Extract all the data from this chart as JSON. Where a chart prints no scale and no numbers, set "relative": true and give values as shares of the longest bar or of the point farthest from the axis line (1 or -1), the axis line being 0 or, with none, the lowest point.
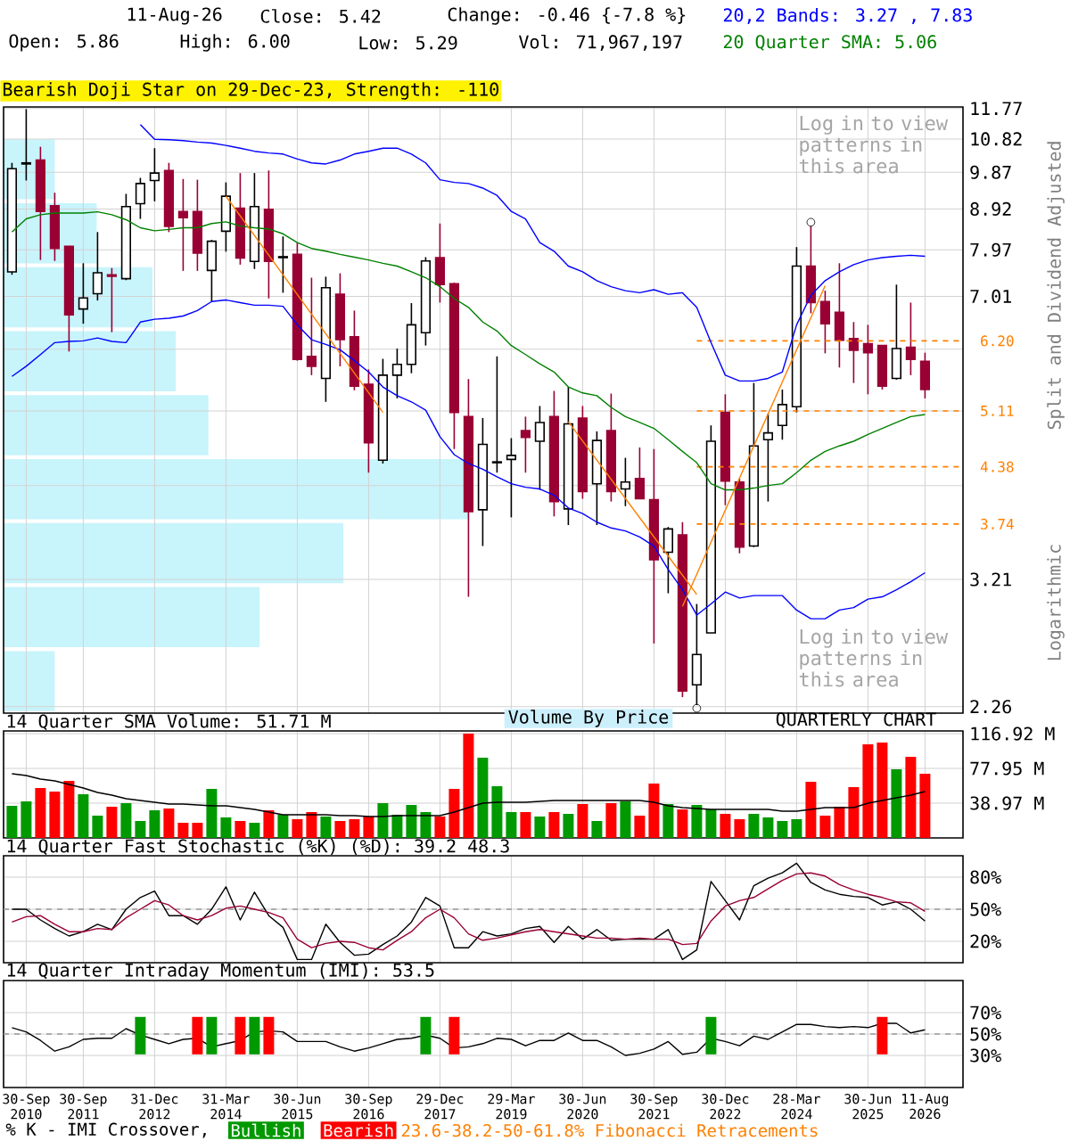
{
  "chart_data": [
    {
      "type": "candlestick",
      "log": true,
      "grid": true,
      "tick_labels": "y",
      "categories": [
        null,
        null,
        null,
        null,
        null,
        null,
        null,
        null,
        null,
        null,
        null,
        null,
        null,
        null,
        null,
        null,
        null,
        null,
        null,
        null,
        null,
        null,
        null,
        null,
        null,
        null,
        null,
        null,
        null,
        null,
        null,
        null,
        null,
        null,
        null,
        null,
        null,
        null,
        null,
        null,
        null,
        null,
        null,
        null,
        null,
        null,
        null,
        null,
        null,
        null,
        null,
        null,
        null,
        null,
        null,
        null,
        null,
        null,
        null,
        null,
        null,
        null,
        null,
        null,
        null
      ],
      "ohlc": [
        [
          7.5,
          10.13,
          7.44,
          9.97
        ],
        [
          10.1,
          11.75,
          9.65,
          10.13
        ],
        [
          10.21,
          10.59,
          7.75,
          8.86
        ],
        [
          9.0,
          9.33,
          7.73,
          8.0
        ],
        [
          8.05,
          8.05,
          6.02,
          6.66
        ],
        [
          6.77,
          7.68,
          6.5,
          6.98
        ],
        [
          7.06,
          8.37,
          6.93,
          7.48
        ],
        [
          7.44,
          7.58,
          6.35,
          7.41
        ],
        [
          7.36,
          9.3,
          7.33,
          8.98
        ],
        [
          9.05,
          9.72,
          8.68,
          9.57
        ],
        [
          9.65,
          10.55,
          9.11,
          9.85
        ],
        [
          9.92,
          10.13,
          8.37,
          8.5
        ],
        [
          8.86,
          9.69,
          7.52,
          8.71
        ],
        [
          8.86,
          9.67,
          7.52,
          7.9
        ],
        [
          7.53,
          8.19,
          6.91,
          8.16
        ],
        [
          8.39,
          9.6,
          7.93,
          9.24
        ],
        [
          8.94,
          9.85,
          7.65,
          7.79
        ],
        [
          7.72,
          9.85,
          7.56,
          8.98
        ],
        [
          8.91,
          9.92,
          6.97,
          7.72
        ],
        [
          7.82,
          8.27,
          7.08,
          7.8
        ],
        [
          7.87,
          8.13,
          5.87,
          5.89
        ],
        [
          5.94,
          7.38,
          5.64,
          5.78
        ],
        [
          5.59,
          7.4,
          5.24,
          7.18
        ],
        [
          7.05,
          7.47,
          5.78,
          6.22
        ],
        [
          6.27,
          6.74,
          5.41,
          5.47
        ],
        [
          5.5,
          5.73,
          4.31,
          4.68
        ],
        [
          4.46,
          5.9,
          4.42,
          5.64
        ],
        [
          5.64,
          6.07,
          5.29,
          5.81
        ],
        [
          5.81,
          6.88,
          5.67,
          6.48
        ],
        [
          6.34,
          7.81,
          6.12,
          7.73
        ],
        [
          7.8,
          8.57,
          6.89,
          7.24
        ],
        [
          7.26,
          7.28,
          4.6,
          5.09
        ],
        [
          5.03,
          5.58,
          3.06,
          3.87
        ],
        [
          3.89,
          5.01,
          3.52,
          4.66
        ],
        [
          4.44,
          5.94,
          4.31,
          4.43
        ],
        [
          4.47,
          4.74,
          3.81,
          4.52
        ],
        [
          4.84,
          5.03,
          4.31,
          4.75
        ],
        [
          4.7,
          5.18,
          4.11,
          4.95
        ],
        [
          5.03,
          5.4,
          3.82,
          3.98
        ],
        [
          3.9,
          5.46,
          3.73,
          4.93
        ],
        [
          5.01,
          5.18,
          4.01,
          4.09
        ],
        [
          4.18,
          4.83,
          3.73,
          4.71
        ],
        [
          4.84,
          5.36,
          3.98,
          4.09
        ],
        [
          4.12,
          4.49,
          3.93,
          4.2
        ],
        [
          4.24,
          4.62,
          4.01,
          4.01
        ],
        [
          4.0,
          4.6,
          2.69,
          3.39
        ],
        [
          3.46,
          3.71,
          3.09,
          3.69
        ],
        [
          3.63,
          3.76,
          2.32,
          2.36
        ],
        [
          2.4,
          3.0,
          2.27,
          2.61
        ],
        [
          2.77,
          4.91,
          2.77,
          4.7
        ],
        [
          5.09,
          5.35,
          3.94,
          4.21
        ],
        [
          4.2,
          4.24,
          3.45,
          3.51
        ],
        [
          3.52,
          5.52,
          3.51,
          4.64
        ],
        [
          4.72,
          5.07,
          3.98,
          4.81
        ],
        [
          4.91,
          5.42,
          4.72,
          5.2
        ],
        [
          5.17,
          8.03,
          5.09,
          7.62
        ],
        [
          7.62,
          8.51,
          6.69,
          6.89
        ],
        [
          6.91,
          7.12,
          5.99,
          6.5
        ],
        [
          6.71,
          7.68,
          5.76,
          6.21
        ],
        [
          6.24,
          6.53,
          5.52,
          6.04
        ],
        [
          6.15,
          6.48,
          5.35,
          6.0
        ],
        [
          6.12,
          6.12,
          5.42,
          5.47
        ],
        [
          5.59,
          7.24,
          5.57,
          6.07
        ],
        [
          6.09,
          6.89,
          5.64,
          5.89
        ],
        [
          5.86,
          6.0,
          5.29,
          5.42
        ]
      ],
      "colors": [
        "#ffffff",
        "#000000",
        "#990033",
        "#990033",
        "#990033",
        "#ffffff",
        "#ffffff",
        "#990033",
        "#ffffff",
        "#ffffff",
        "#ffffff",
        "#990033",
        "#990033",
        "#990033",
        "#ffffff",
        "#ffffff",
        "#990033",
        "#ffffff",
        "#990033",
        "#000000",
        "#990033",
        "#990033",
        "#ffffff",
        "#990033",
        "#990033",
        "#990033",
        "#ffffff",
        "#ffffff",
        "#ffffff",
        "#ffffff",
        "#990033",
        "#990033",
        "#990033",
        "#ffffff",
        "#000000",
        "#ffffff",
        "#990033",
        "#ffffff",
        "#990033",
        "#ffffff",
        "#990033",
        "#ffffff",
        "#990033",
        "#ffffff",
        "#990033",
        "#990033",
        "#ffffff",
        "#990033",
        "#ffffff",
        "#ffffff",
        "#990033",
        "#990033",
        "#ffffff",
        "#ffffff",
        "#ffffff",
        "#ffffff",
        "#990033",
        "#990033",
        "#990033",
        "#990033",
        "#990033",
        "#990033",
        "#ffffff",
        "#990033",
        "#990033"
      ],
      "series": [
        {
          "name": "20,2 Bands: 3.27 , 7.83",
          "type": "line",
          "color": "#0000ff",
          "values": [
            null,
            null,
            null,
            null,
            null,
            null,
            null,
            null,
            null,
            11.26,
            10.81,
            10.8,
            10.77,
            10.73,
            10.7,
            10.63,
            10.55,
            10.46,
            10.41,
            10.38,
            10.24,
            10.13,
            10.1,
            10.21,
            10.38,
            10.46,
            10.55,
            10.55,
            10.38,
            10.13,
            9.67,
            9.6,
            9.57,
            9.45,
            9.26,
            8.86,
            8.68,
            8.13,
            7.94,
            7.62,
            7.5,
            7.32,
            7.2,
            7.12,
            7.08,
            7.14,
            7.05,
            7.08,
            6.8,
            6.17,
            5.64,
            5.55,
            5.55,
            5.59,
            5.69,
            6.48,
            7.03,
            7.32,
            7.5,
            7.65,
            7.75,
            7.8,
            7.83,
            7.85,
            7.83
          ]
        },
        {
          "type": "line",
          "color": "#0000ff",
          "values": [
            5.62,
            5.78,
            5.97,
            6.17,
            6.19,
            6.2,
            6.25,
            6.19,
            6.17,
            6.53,
            6.58,
            6.6,
            6.64,
            6.74,
            6.91,
            6.94,
            6.89,
            6.84,
            6.84,
            6.82,
            6.48,
            6.22,
            6.14,
            6.05,
            5.87,
            5.69,
            5.46,
            5.33,
            5.24,
            5.12,
            4.76,
            4.53,
            4.42,
            4.35,
            4.26,
            4.18,
            4.14,
            4.12,
            4.05,
            3.91,
            3.85,
            3.76,
            3.7,
            3.67,
            3.61,
            3.52,
            3.3,
            3.12,
            2.91,
            3.0,
            3.1,
            3.05,
            3.07,
            3.07,
            3.07,
            2.95,
            2.88,
            2.88,
            2.95,
            2.97,
            3.04,
            3.06,
            3.12,
            3.19,
            3.27
          ]
        },
        {
          "name": "20 Quarter SMA: 5.06",
          "type": "line",
          "color": "#008000",
          "values": [
            8.37,
            8.68,
            8.78,
            8.82,
            8.82,
            8.82,
            8.85,
            8.78,
            8.66,
            8.47,
            8.4,
            8.43,
            8.47,
            8.47,
            8.57,
            8.61,
            8.51,
            8.47,
            8.44,
            8.33,
            8.13,
            8.0,
            7.94,
            7.87,
            7.81,
            7.75,
            7.68,
            7.62,
            7.5,
            7.38,
            7.2,
            6.97,
            6.8,
            6.53,
            6.37,
            6.12,
            5.97,
            5.82,
            5.69,
            5.46,
            5.37,
            5.33,
            5.16,
            5.03,
            4.95,
            4.87,
            4.72,
            4.57,
            4.43,
            4.18,
            4.11,
            4.11,
            4.13,
            4.16,
            4.18,
            4.31,
            4.46,
            4.57,
            4.64,
            4.7,
            4.79,
            4.87,
            4.95,
            5.03,
            5.06
          ]
        },
        {
          "type": "line",
          "color": "#ff8000",
          "values": [
            null,
            null,
            null,
            null,
            null,
            null,
            null,
            null,
            null,
            null,
            null,
            null,
            null,
            null,
            null,
            9.24,
            null,
            null,
            null,
            null,
            null,
            null,
            null,
            null,
            null,
            null,
            5.09,
            null,
            null,
            null,
            null,
            null,
            null,
            null,
            null,
            null,
            null,
            null,
            null,
            null,
            null,
            null,
            null,
            null,
            null,
            null,
            null,
            null,
            null,
            null,
            null,
            null,
            null,
            null,
            null,
            null,
            null,
            null,
            null,
            null,
            null,
            null,
            null,
            null,
            null
          ]
        },
        {
          "type": "line",
          "color": "#ff8000",
          "values": [
            null,
            null,
            null,
            null,
            null,
            null,
            null,
            null,
            null,
            null,
            null,
            null,
            null,
            null,
            null,
            null,
            null,
            null,
            null,
            null,
            null,
            null,
            null,
            null,
            null,
            null,
            null,
            null,
            null,
            null,
            null,
            null,
            null,
            null,
            null,
            null,
            null,
            null,
            null,
            4.96,
            null,
            null,
            null,
            null,
            null,
            null,
            null,
            null,
            3.08,
            null,
            null,
            null,
            null,
            null,
            null,
            null,
            null,
            null,
            null,
            null,
            null,
            null,
            null,
            null,
            null
          ]
        },
        {
          "type": "line",
          "color": "#ff8000",
          "values": [
            null,
            null,
            null,
            null,
            null,
            null,
            null,
            null,
            null,
            null,
            null,
            null,
            null,
            null,
            null,
            null,
            null,
            null,
            null,
            null,
            null,
            null,
            null,
            null,
            null,
            null,
            null,
            null,
            null,
            null,
            null,
            null,
            null,
            null,
            null,
            null,
            null,
            null,
            null,
            null,
            null,
            null,
            null,
            null,
            null,
            null,
            null,
            2.98,
            null,
            null,
            null,
            null,
            null,
            null,
            null,
            null,
            null,
            7.22,
            null,
            null,
            null,
            null,
            null,
            null,
            null
          ]
        },
        {
          "type": "scatter",
          "marker": "circle",
          "color": "#000000",
          "values": [
            null,
            null,
            null,
            null,
            null,
            null,
            null,
            null,
            null,
            null,
            null,
            null,
            null,
            null,
            null,
            null,
            null,
            null,
            null,
            null,
            null,
            null,
            null,
            null,
            null,
            null,
            null,
            null,
            null,
            null,
            null,
            null,
            null,
            null,
            null,
            null,
            null,
            null,
            null,
            null,
            null,
            null,
            null,
            null,
            null,
            null,
            null,
            null,
            2.25,
            null,
            null,
            null,
            null,
            null,
            null,
            null,
            8.6,
            null,
            null,
            null,
            null,
            null,
            null,
            null,
            null
          ]
        }
      ],
      "ylim": [
        2.22,
        11.82
      ],
      "yticks": [
        11.77,
        10.82,
        9.87,
        8.92,
        7.97,
        7.01,
        {
          "value": 6.06,
          "label": null
        },
        {
          "value": 5.11,
          "label": null
        },
        {
          "value": 4.16,
          "label": null
        },
        3.21,
        2.26
      ],
      "ref_lines": [
        {
          "axis": "y",
          "value": 6.2,
          "label": "6.20",
          "color": "#ff8000",
          "line_style": "dashed"
        },
        {
          "axis": "y",
          "value": 5.11,
          "label": "5.11",
          "color": "#ff8000",
          "line_style": "dashed"
        },
        {
          "axis": "y",
          "value": 4.38,
          "label": "4.38",
          "color": "#ff8000",
          "line_style": "dashed"
        },
        {
          "axis": "y",
          "value": 3.74,
          "label": "3.74",
          "color": "#ff8000",
          "line_style": "dashed"
        }
      ],
      "annotations": [
        "11-Aug-26",
        "Close: 5.42",
        "Change: -0.46 {-7.8 %}",
        "Open: 5.86",
        "High: 6.00",
        "Low: 5.29",
        "Vol: 71,967,197",
        "Bearish Doji Star on 29-Dec-23, Strength: -110",
        "Log in to view patterns in this area",
        "Log in to view patterns in this area",
        "QUARTERLY CHART",
        "Split and Dividend Adjusted",
        "Logarithmic",
        "23.6-38.2-50-61.8% Fibonacci Retracements",
        "Volume By Price"
      ]
    },
    {
      "type": "bar",
      "orientation": "horizontal",
      "relative": true,
      "tick_labels": false,
      "color": "#c8f4fc",
      "categories": [
        null,
        null,
        null,
        null,
        null,
        null,
        null,
        null,
        null
      ],
      "values": [
        0.11,
        0.2,
        0.32,
        0.37,
        0.44,
        1,
        0.73,
        0.55,
        0.11
      ]
    },
    {
      "type": "bar",
      "title": "14 Quarter SMA Volume: 51.71 M",
      "grid": true,
      "tick_labels": "y",
      "categories": [
        null,
        null,
        null,
        null,
        null,
        null,
        null,
        null,
        null,
        null,
        null,
        null,
        null,
        null,
        null,
        null,
        null,
        null,
        null,
        null,
        null,
        null,
        null,
        null,
        null,
        null,
        null,
        null,
        null,
        null,
        null,
        null,
        null,
        null,
        null,
        null,
        null,
        null,
        null,
        null,
        null,
        null,
        null,
        null,
        null,
        null,
        null,
        null,
        null,
        null,
        null,
        null,
        null,
        null,
        null,
        null,
        null,
        null,
        null,
        null,
        null,
        null,
        null,
        null,
        null
      ],
      "series": [
        {
          "type": "bar",
          "values": [
            36,
            41,
            56,
            52,
            64,
            49,
            25,
            35,
            39,
            19,
            31,
            33,
            17,
            17,
            55,
            23,
            19,
            17,
            31,
            26,
            21,
            29,
            24,
            19,
            21,
            24,
            39,
            26,
            37,
            29,
            24,
            55,
            117,
            90,
            58,
            29,
            29,
            24,
            29,
            27,
            38,
            19,
            39,
            41,
            25,
            61,
            38,
            32,
            37,
            32,
            27,
            21,
            27,
            23,
            19,
            21,
            63,
            25,
            35,
            57,
            105,
            107,
            77,
            91,
            72
          ],
          "colors": [
            "#009900",
            "#009900",
            "#ff0000",
            "#ff0000",
            "#ff0000",
            "#009900",
            "#009900",
            "#ff0000",
            "#009900",
            "#009900",
            "#009900",
            "#ff0000",
            "#ff0000",
            "#ff0000",
            "#009900",
            "#009900",
            "#ff0000",
            "#009900",
            "#ff0000",
            "#009900",
            "#ff0000",
            "#ff0000",
            "#009900",
            "#ff0000",
            "#ff0000",
            "#ff0000",
            "#009900",
            "#009900",
            "#009900",
            "#009900",
            "#ff0000",
            "#ff0000",
            "#ff0000",
            "#009900",
            "#009900",
            "#009900",
            "#ff0000",
            "#009900",
            "#ff0000",
            "#009900",
            "#ff0000",
            "#009900",
            "#ff0000",
            "#009900",
            "#ff0000",
            "#ff0000",
            "#009900",
            "#ff0000",
            "#009900",
            "#009900",
            "#ff0000",
            "#ff0000",
            "#009900",
            "#009900",
            "#009900",
            "#009900",
            "#ff0000",
            "#ff0000",
            "#ff0000",
            "#ff0000",
            "#ff0000",
            "#ff0000",
            "#009900",
            "#ff0000",
            "#ff0000"
          ]
        },
        {
          "type": "line",
          "color": "#000000",
          "values": [
            72,
            70,
            66,
            64,
            60,
            56,
            51,
            48,
            44,
            42,
            40,
            38,
            38,
            37,
            36,
            36,
            34,
            32,
            29,
            26,
            26,
            26,
            26,
            25,
            25,
            24,
            24,
            25,
            25,
            25,
            25,
            29,
            34,
            39,
            40,
            40,
            40,
            41,
            42,
            42,
            42,
            42,
            42,
            42,
            42,
            40,
            36,
            34,
            33,
            32,
            32,
            32,
            32,
            32,
            30,
            30,
            32,
            34,
            34,
            34,
            39,
            42,
            45,
            48,
            52
          ]
        }
      ],
      "ylim": [
        0,
        120
      ],
      "yticks": [
        {
          "value": 38.97,
          "label": "38.97 M"
        },
        {
          "value": 77.95,
          "label": "77.95 M"
        },
        {
          "value": 116.92,
          "label": "116.92 M"
        }
      ]
    },
    {
      "type": "line",
      "title": "14 Quarter Fast Stochastic (%K) (%D): 39.2  48.3",
      "grid": true,
      "tick_labels": "y",
      "categories": [
        null,
        null,
        null,
        null,
        null,
        null,
        null,
        null,
        null,
        null,
        null,
        null,
        null,
        null,
        null,
        null,
        null,
        null,
        null,
        null,
        null,
        null,
        null,
        null,
        null,
        null,
        null,
        null,
        null,
        null,
        null,
        null,
        null,
        null,
        null,
        null,
        null,
        null,
        null,
        null,
        null,
        null,
        null,
        null,
        null,
        null,
        null,
        null,
        null,
        null,
        null,
        null,
        null,
        null,
        null,
        null,
        null,
        null,
        null,
        null,
        null,
        null,
        null,
        null,
        null
      ],
      "series": [
        {
          "color": "#000000",
          "values": [
            50,
            50,
            40,
            32,
            25,
            29,
            36,
            31,
            50,
            61,
            67,
            44,
            44,
            36,
            50,
            71,
            40,
            66,
            44,
            33,
            3,
            3,
            36,
            19,
            7,
            8,
            17,
            25,
            38,
            61,
            53,
            14,
            14,
            29,
            25,
            27,
            32,
            34,
            19,
            34,
            22,
            31,
            21,
            22,
            22,
            22,
            31,
            3,
            12,
            76,
            58,
            40,
            72,
            79,
            84,
            93,
            75,
            68,
            64,
            62,
            61,
            54,
            57,
            50,
            39
          ]
        },
        {
          "color": "#990033",
          "values": [
            38,
            43,
            44,
            36,
            29,
            29,
            32,
            31,
            42,
            50,
            58,
            54,
            44,
            40,
            44,
            51,
            53,
            50,
            47,
            42,
            22,
            14,
            18,
            20,
            19,
            14,
            12,
            21,
            29,
            42,
            50,
            42,
            27,
            21,
            23,
            26,
            29,
            31,
            29,
            27,
            25,
            23,
            23,
            22,
            23,
            22,
            22,
            17,
            18,
            39,
            53,
            58,
            61,
            69,
            77,
            83,
            84,
            81,
            73,
            68,
            64,
            61,
            57,
            56,
            48
          ]
        }
      ],
      "ylim": [
        0,
        100
      ],
      "yticks": [
        {
          "value": 20,
          "label": "20%"
        },
        {
          "value": 50,
          "label": "50%"
        },
        {
          "value": 80,
          "label": "80%"
        }
      ],
      "ref_lines": [
        {
          "axis": "y",
          "value": 50,
          "color": "#999999",
          "line_style": "dashed"
        }
      ]
    },
    {
      "type": "line",
      "title": "14 Quarter Intraday Momentum (IMI): 53.5",
      "grid": true,
      "legend": "bottom",
      "legend_title": "% K - IMI Crossover,",
      "categories": [
        null,
        "30-Sep 2010",
        null,
        null,
        null,
        "30-Sep 2011",
        null,
        null,
        null,
        null,
        "31-Dec 2012",
        null,
        null,
        null,
        null,
        "31-Mar 2014",
        null,
        null,
        null,
        null,
        "30-Jun 2015",
        null,
        null,
        null,
        null,
        "30-Sep 2016",
        null,
        null,
        null,
        null,
        "29-Dec 2017",
        null,
        null,
        null,
        null,
        "29-Mar 2019",
        null,
        null,
        null,
        null,
        "30-Jun 2020",
        null,
        null,
        null,
        null,
        "30-Sep 2021",
        null,
        null,
        null,
        null,
        "30-Dec 2022",
        null,
        null,
        null,
        null,
        "28-Mar 2024",
        null,
        null,
        null,
        null,
        "30-Jun 2025",
        null,
        null,
        null,
        "11-Aug 2026"
      ],
      "series": [
        {
          "type": "line",
          "color": "#000000",
          "values": [
            56,
            52,
            44,
            34,
            38,
            45,
            46,
            46,
            55,
            49,
            45,
            41,
            45,
            46,
            38,
            41,
            44,
            52,
            53,
            52,
            43,
            43,
            43,
            38,
            34,
            37,
            41,
            45,
            46,
            49,
            46,
            37,
            38,
            41,
            46,
            45,
            39,
            44,
            44,
            51,
            44,
            44,
            38,
            30,
            32,
            36,
            43,
            31,
            33,
            46,
            43,
            39,
            48,
            45,
            52,
            59,
            59,
            57,
            56,
            57,
            56,
            60,
            60,
            51,
            54
          ]
        },
        {
          "name": "Bullish",
          "type": "bar",
          "color": "#009900",
          "values": [
            null,
            null,
            null,
            null,
            null,
            null,
            null,
            null,
            null,
            35,
            null,
            null,
            null,
            null,
            35,
            null,
            null,
            35,
            null,
            null,
            null,
            null,
            null,
            null,
            null,
            null,
            null,
            null,
            null,
            35,
            null,
            null,
            null,
            null,
            null,
            null,
            null,
            null,
            null,
            null,
            null,
            null,
            null,
            null,
            null,
            null,
            null,
            null,
            null,
            35,
            null,
            null,
            null,
            null,
            null,
            null,
            null,
            null,
            null,
            null,
            null,
            null,
            null,
            null,
            null
          ],
          "base": [
            null,
            null,
            null,
            null,
            null,
            null,
            null,
            null,
            null,
            31,
            null,
            null,
            null,
            null,
            31,
            null,
            null,
            31,
            null,
            null,
            null,
            null,
            null,
            null,
            null,
            null,
            null,
            null,
            null,
            31,
            null,
            null,
            null,
            null,
            null,
            null,
            null,
            null,
            null,
            null,
            null,
            null,
            null,
            null,
            null,
            null,
            null,
            null,
            null,
            31,
            null,
            null,
            null,
            null,
            null,
            null,
            null,
            null,
            null,
            null,
            null,
            null,
            null,
            null,
            null
          ]
        },
        {
          "name": "Bearish",
          "type": "bar",
          "color": "#ff0000",
          "values": [
            null,
            null,
            null,
            null,
            null,
            null,
            null,
            null,
            null,
            null,
            null,
            null,
            null,
            35,
            null,
            null,
            35,
            null,
            35,
            null,
            null,
            null,
            null,
            null,
            null,
            null,
            null,
            null,
            null,
            null,
            null,
            35,
            null,
            null,
            null,
            null,
            null,
            null,
            null,
            null,
            null,
            null,
            null,
            null,
            null,
            null,
            null,
            null,
            null,
            null,
            null,
            null,
            null,
            null,
            null,
            null,
            null,
            null,
            null,
            null,
            null,
            35,
            null,
            null,
            null
          ],
          "base": [
            null,
            null,
            null,
            null,
            null,
            null,
            null,
            null,
            null,
            null,
            null,
            null,
            null,
            31,
            null,
            null,
            31,
            null,
            31,
            null,
            null,
            null,
            null,
            null,
            null,
            null,
            null,
            null,
            null,
            null,
            null,
            31,
            null,
            null,
            null,
            null,
            null,
            null,
            null,
            null,
            null,
            null,
            null,
            null,
            null,
            null,
            null,
            null,
            null,
            null,
            null,
            null,
            null,
            null,
            null,
            null,
            null,
            null,
            null,
            null,
            null,
            31,
            null,
            null,
            null
          ]
        }
      ],
      "ylim": [
        0,
        100
      ],
      "yticks": [
        {
          "value": 30,
          "label": "30%"
        },
        {
          "value": 50,
          "label": "50%"
        },
        {
          "value": 70,
          "label": "70%"
        }
      ],
      "ref_lines": [
        {
          "axis": "y",
          "value": 50,
          "color": "#999999",
          "line_style": "dashed"
        }
      ]
    }
  ]
}
